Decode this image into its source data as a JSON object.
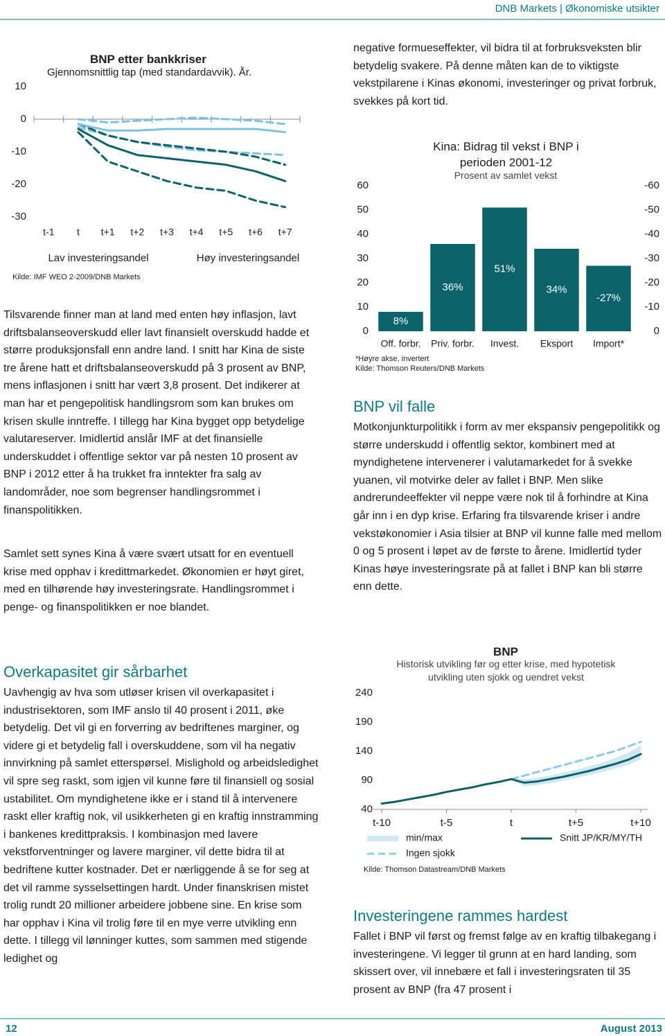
{
  "header": {
    "title": "DNB Markets | Økonomiske utsikter"
  },
  "chart_data": [
    {
      "type": "line",
      "title": "BNP etter bankkriser",
      "subtitle": "Gjennomsnittlig tap (med standardavvik). År.",
      "categories": [
        "t-1",
        "t",
        "t+1",
        "t+2",
        "t+3",
        "t+4",
        "t+5",
        "t+6",
        "t+7"
      ],
      "series": [
        {
          "name": "Lav investeringsandel",
          "color": "#7cc3e0",
          "values": [
            null,
            -1.5,
            -3.5,
            -3.5,
            -3,
            -3,
            -3,
            -3,
            -4
          ]
        },
        {
          "name": "Høy investeringsandel",
          "color": "#0b6268",
          "values": [
            null,
            -3,
            -8,
            -11,
            -12,
            -13,
            -14,
            -16,
            -19
          ]
        }
      ],
      "bands": [
        {
          "color": "#7cc3e0",
          "dash": true,
          "values": [
            null,
            0,
            -1,
            -0.5,
            0,
            0.5,
            0,
            -0.5,
            -1.5
          ]
        },
        {
          "color": "#7cc3e0",
          "dash": true,
          "values": [
            null,
            -2.5,
            -5,
            -7,
            -8.5,
            -9.5,
            -10,
            -10.5,
            -11
          ]
        },
        {
          "color": "#0b6268",
          "dash": true,
          "values": [
            null,
            -1.5,
            -5,
            -7,
            -8,
            -9,
            -10,
            -11.5,
            -14
          ]
        },
        {
          "color": "#0b6268",
          "dash": true,
          "values": [
            null,
            -4,
            -13,
            -16,
            -19,
            -21,
            -22,
            -25,
            -27
          ]
        }
      ],
      "ylim": [
        -30,
        10
      ],
      "yticks": [
        -30,
        -20,
        -10,
        0,
        10
      ],
      "grid": false,
      "source": "Kilde: IMF WEO 2-2009/DNB Markets"
    },
    {
      "type": "bar",
      "title": "Kina: Bidrag til vekst i BNP i perioden 2001-12",
      "subtitle": "Prosent av samlet vekst",
      "categories": [
        "Off. forbr.",
        "Priv. forbr.",
        "Invest.",
        "Eksport",
        "Import*"
      ],
      "series": [
        {
          "color": "#0b6268",
          "values": [
            8,
            36,
            51,
            34,
            null
          ],
          "value_labels": [
            "8%",
            "36%",
            "51%",
            "34%",
            null
          ]
        },
        {
          "color": "#0b6268",
          "axis": "y2",
          "values": [
            null,
            null,
            null,
            null,
            -27
          ],
          "value_labels": [
            null,
            null,
            null,
            null,
            "-27%"
          ]
        }
      ],
      "ylim": [
        0,
        60
      ],
      "yticks": [
        0,
        10,
        20,
        30,
        40,
        50,
        60
      ],
      "y2lim": [
        0,
        -60
      ],
      "y2ticks": [
        0,
        -10,
        -20,
        -30,
        -40,
        -50,
        -60
      ],
      "grid": false,
      "note": "*Høyre akse, invertert",
      "source": "Kilde: Thomson Reuters/DNB Markets"
    },
    {
      "type": "line",
      "title": "BNP",
      "subtitle": "Historisk utvikling før og etter krise, med hypotetisk utvikling uten sjokk og uendret vekst",
      "x": [
        -10,
        -9,
        -8,
        -7,
        -6,
        -5,
        -4,
        -3,
        -2,
        -1,
        0,
        1,
        2,
        3,
        4,
        5,
        6,
        7,
        8,
        9,
        10
      ],
      "series": [
        {
          "name": "min/max",
          "color": "#cfe8f3",
          "band": true,
          "low": [
            null,
            null,
            null,
            null,
            null,
            null,
            null,
            null,
            null,
            null,
            92,
            80,
            82,
            85,
            89,
            94,
            99,
            104,
            110,
            116,
            126
          ],
          "high": [
            null,
            null,
            null,
            null,
            null,
            null,
            null,
            null,
            null,
            null,
            92,
            92,
            94,
            98,
            103,
            108,
            114,
            120,
            128,
            137,
            150
          ]
        },
        {
          "name": "Ingen sjokk",
          "color": "#8fcae6",
          "dash": true,
          "values": [
            null,
            null,
            null,
            null,
            null,
            null,
            null,
            null,
            null,
            null,
            92,
            98,
            104,
            110,
            116,
            122,
            128,
            134,
            140,
            148,
            156
          ]
        },
        {
          "name": "Snitt JP/KR/MY/TH",
          "color": "#0b6268",
          "values": [
            50,
            53,
            57,
            61,
            65,
            70,
            74,
            78,
            83,
            87,
            92,
            86,
            88,
            92,
            96,
            101,
            106,
            112,
            118,
            125,
            135
          ]
        }
      ],
      "xlim": [
        -10,
        10
      ],
      "xticks": [
        {
          "value": -10,
          "label": "t-10"
        },
        {
          "value": -5,
          "label": "t-5"
        },
        {
          "value": 0,
          "label": "t"
        },
        {
          "value": 5,
          "label": "t+5"
        },
        {
          "value": 10,
          "label": "t+10"
        }
      ],
      "ylim": [
        40,
        240
      ],
      "yticks": [
        40,
        90,
        140,
        190,
        240
      ],
      "grid": false,
      "source": "Kilde: Thomson Datastream/DNB Markets"
    }
  ],
  "left": {
    "paragraphs": [
      "Tilsvarende finner man at land med enten høy inflasjon, lavt driftsbalanseoverskudd eller lavt finansielt overskudd hadde et større produksjonsfall enn andre land. I snitt har Kina de siste tre årene hatt et driftsbalanseoverskudd på 3 prosent av BNP, mens inflasjonen i snitt har vært 3,8 prosent. Det indikerer at man har et pengepolitisk handlingsrom som kan brukes om krisen skulle inntreffe. I tillegg har Kina bygget opp betydelige valutareserver. Imidlertid anslår IMF at det finansielle underskuddet i offentlige sektor var på nesten 10 prosent av BNP i 2012 etter å ha trukket fra inntekter fra salg av landområder, noe som begrenser handlingsrommet i finanspolitikken.",
      "Samlet sett synes Kina å være svært utsatt for en eventuell krise med opphav i kredittmarkedet. Økonomien er høyt giret, med en tilhørende høy investeringsrate. Handlingsrommet i penge- og finanspolitikken er noe blandet."
    ],
    "heading": "Overkapasitet gir sårbarhet",
    "paragraph_after": "Uavhengig av hva som utløser krisen vil overkapasitet i industrisektoren, som IMF anslo til 40 prosent i 2011, øke betydelig. Det vil gi en forverring av bedriftenes marginer, og videre gi et betydelig fall i overskuddene, som vil ha negativ innvirkning på samlet etterspørsel. Mislighold og arbeidsledighet vil spre seg raskt, som igjen vil kunne føre til finansiell og sosial ustabilitet. Om myndighetene ikke er i stand til å intervenere raskt eller kraftig nok, vil usikkerheten gi en kraftig innstramming i bankenes kredittpraksis. I kombinasjon med lavere vekstforventninger og lavere marginer, vil dette bidra til at bedriftene kutter kostnader. Det er nærliggende å se for seg at det vil ramme sysselsettingen hardt. Under finanskrisen mistet trolig rundt 20 millioner arbeidere jobbene sine. En krise som har opphav i Kina vil trolig føre til en mye verre utvikling enn dette. I tillegg vil lønninger kuttes, som sammen med stigende ledighet og"
  },
  "right": {
    "paragraph_1": "negative formueseffekter, vil bidra til at forbruksveksten blir betydelig svakere. På denne måten kan de to viktigste vekstpilarene i Kinas økonomi, investeringer og privat forbruk, svekkes på kort tid.",
    "heading_1": "BNP vil falle",
    "paragraph_2": "Motkonjunkturpolitikk i form av mer ekspansiv pengepolitikk og større underskudd i offentlig sektor, kombinert med at myndighetene intervenerer i valutamarkedet for å svekke yuanen, vil motvirke deler av fallet i BNP. Men slike andrerundeeffekter vil neppe være nok til å forhindre at Kina går inn i en dyp krise. Erfaring fra tilsvarende kriser i andre vekstøkonomier i Asia tilsier at BNP vil kunne falle med mellom 0 og 5 prosent i løpet av de første to årene. Imidlertid tyder Kinas høye investeringsrate på at fallet i BNP kan bli større enn dette.",
    "heading_2": "Investeringene rammes hardest",
    "paragraph_3": "Fallet i BNP vil først og fremst følge av en kraftig tilbakegang i investeringene. Vi legger til grunn at en hard landing, som skissert over, vil innebære et fall i investeringsraten til 35 prosent av BNP (fra 47 prosent i"
  },
  "footer": {
    "page": "12",
    "date": "August 2013"
  }
}
